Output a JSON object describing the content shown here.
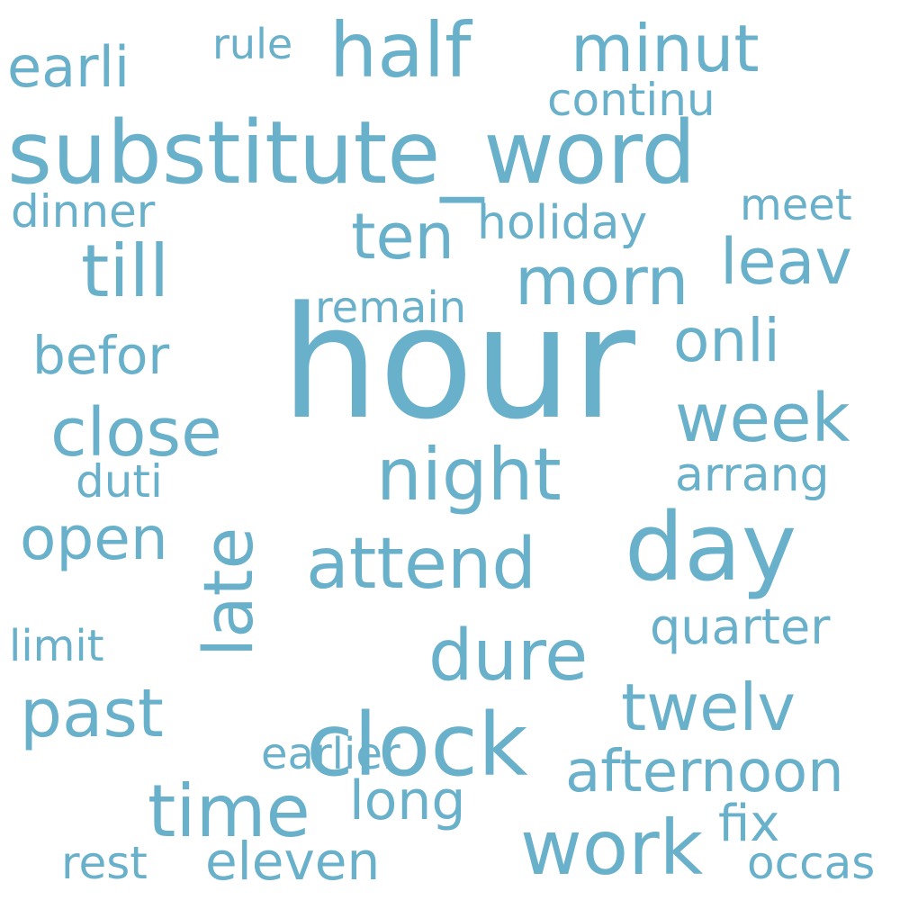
{
  "style": {
    "word_color": "#69b0cb",
    "background": "#ffffff"
  },
  "words": {
    "hour": "hour",
    "substitute_word": "substitute_word",
    "half": "half",
    "minut": "minut",
    "earli": "earli",
    "rule": "rule",
    "continu": "continu",
    "dinner": "dinner",
    "holiday": "holiday",
    "meet": "meet",
    "ten": "ten",
    "till": "till",
    "morn": "morn",
    "leav": "leav",
    "remain": "remain",
    "onli": "onli",
    "befor": "befor",
    "close": "close",
    "week": "week",
    "night": "night",
    "duti": "duti",
    "late": "late",
    "arrang": "arrang",
    "open": "open",
    "earlier": "earlier",
    "attend": "attend",
    "day": "day",
    "quarter": "quarter",
    "limit": "limit",
    "dure": "dure",
    "past": "past",
    "twelv": "twelv",
    "clock": "clock",
    "afternoon": "afternoon",
    "time": "time",
    "long": "long",
    "fix": "fix",
    "work": "work",
    "rest": "rest",
    "eleven": "eleven",
    "occas": "occas"
  }
}
